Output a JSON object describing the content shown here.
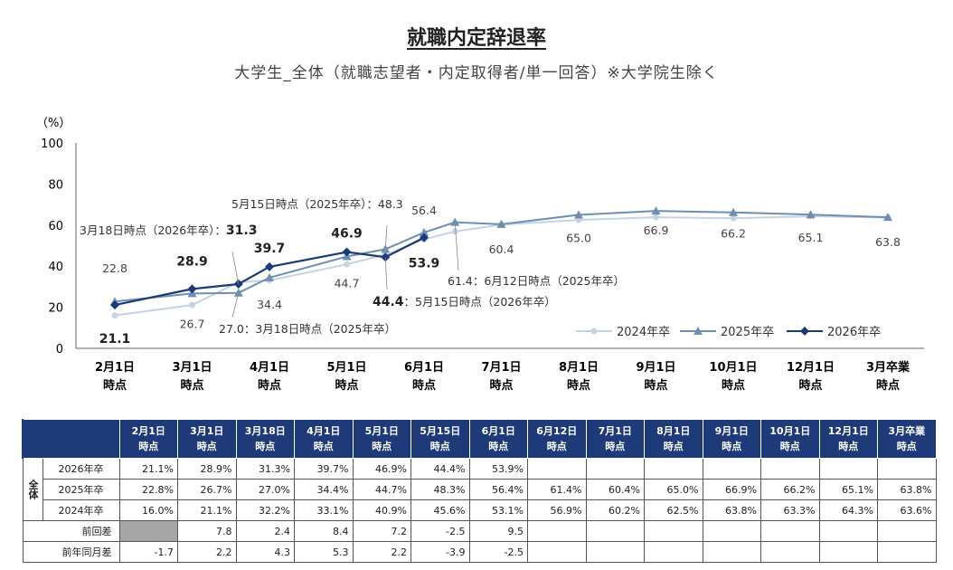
{
  "title": "就職内定辞退率",
  "subtitle": "大学生_全体（就職志望者・内定取得者/単一回答）※大学院生除く",
  "chart_data": {
    "type": "line",
    "ylabel": "（%）",
    "ylim": [
      0,
      100
    ],
    "yticks": [
      0,
      20,
      40,
      60,
      80,
      100
    ],
    "xlabels": [
      "2月1日\n時点",
      "3月1日\n時点",
      "4月1日\n時点",
      "5月1日\n時点",
      "6月1日\n時点",
      "7月1日\n時点",
      "8月1日\n時点",
      "9月1日\n時点",
      "10月1日\n時点",
      "12月1日\n時点",
      "3月卒業\n時点"
    ],
    "legend_position": "bottom-right",
    "series": [
      {
        "name": "2024年卒",
        "color": "#c5d3e3",
        "marker": "circle",
        "points": [
          {
            "x": 0,
            "y": 16.0
          },
          {
            "x": 1,
            "y": 21.1
          },
          {
            "x": 1.6,
            "y": 32.2
          },
          {
            "x": 2,
            "y": 33.1
          },
          {
            "x": 3,
            "y": 40.9
          },
          {
            "x": 3.5,
            "y": 45.6
          },
          {
            "x": 4,
            "y": 53.1
          },
          {
            "x": 4.4,
            "y": 56.9
          },
          {
            "x": 5,
            "y": 60.2
          },
          {
            "x": 6,
            "y": 62.5
          },
          {
            "x": 7,
            "y": 63.8
          },
          {
            "x": 8,
            "y": 63.3
          },
          {
            "x": 9,
            "y": 64.3
          },
          {
            "x": 10,
            "y": 63.6
          }
        ]
      },
      {
        "name": "2025年卒",
        "color": "#6f8fb2",
        "marker": "triangle",
        "points": [
          {
            "x": 0,
            "y": 22.8
          },
          {
            "x": 1,
            "y": 26.7
          },
          {
            "x": 1.6,
            "y": 27.0
          },
          {
            "x": 2,
            "y": 34.4
          },
          {
            "x": 3,
            "y": 44.7
          },
          {
            "x": 3.5,
            "y": 48.3
          },
          {
            "x": 4,
            "y": 56.4
          },
          {
            "x": 4.4,
            "y": 61.4
          },
          {
            "x": 5,
            "y": 60.4
          },
          {
            "x": 6,
            "y": 65.0
          },
          {
            "x": 7,
            "y": 66.9
          },
          {
            "x": 8,
            "y": 66.2
          },
          {
            "x": 9,
            "y": 65.1
          },
          {
            "x": 10,
            "y": 63.8
          }
        ]
      },
      {
        "name": "2026年卒",
        "color": "#1b3a78",
        "marker": "diamond",
        "points": [
          {
            "x": 0,
            "y": 21.1
          },
          {
            "x": 1,
            "y": 28.9
          },
          {
            "x": 1.6,
            "y": 31.3
          },
          {
            "x": 2,
            "y": 39.7
          },
          {
            "x": 3,
            "y": 46.9
          },
          {
            "x": 3.5,
            "y": 44.4
          },
          {
            "x": 4,
            "y": 53.9
          }
        ]
      }
    ],
    "annotations": [
      {
        "text": "22.8",
        "x": 0,
        "y": 22.8,
        "dy": -32,
        "anchor": "middle",
        "color": "#444",
        "bold": false
      },
      {
        "text": "21.1",
        "x": 0,
        "y": 21.1,
        "dy": 42,
        "anchor": "middle",
        "color": "#222",
        "bold": true
      },
      {
        "text": "28.9",
        "x": 1,
        "y": 28.9,
        "dy": -26,
        "anchor": "middle",
        "color": "#222",
        "bold": true
      },
      {
        "text": "26.7",
        "x": 1,
        "y": 26.7,
        "dy": 38,
        "anchor": "middle",
        "color": "#444",
        "bold": false
      },
      {
        "text": "39.7",
        "x": 2,
        "y": 39.7,
        "dy": -16,
        "anchor": "middle",
        "color": "#222",
        "bold": true
      },
      {
        "text": "34.4",
        "x": 2,
        "y": 34.4,
        "dy": 34,
        "anchor": "middle",
        "color": "#444",
        "bold": false
      },
      {
        "text": "46.9",
        "x": 3,
        "y": 46.9,
        "dy": -16,
        "anchor": "middle",
        "color": "#222",
        "bold": true
      },
      {
        "text": "44.7",
        "x": 3,
        "y": 44.7,
        "dy": 34,
        "anchor": "middle",
        "color": "#444",
        "bold": false
      },
      {
        "text": "56.4",
        "x": 4,
        "y": 56.4,
        "dy": -20,
        "anchor": "middle",
        "color": "#444",
        "bold": false
      },
      {
        "text": "53.9",
        "x": 4,
        "y": 53.9,
        "dy": 33,
        "anchor": "middle",
        "color": "#222",
        "bold": true
      },
      {
        "text": "60.4",
        "x": 5,
        "y": 60.4,
        "dy": 32,
        "anchor": "middle",
        "color": "#444",
        "bold": false
      },
      {
        "text": "65.0",
        "x": 6,
        "y": 65.0,
        "dy": 30,
        "anchor": "middle",
        "color": "#444",
        "bold": false
      },
      {
        "text": "66.9",
        "x": 7,
        "y": 66.9,
        "dy": 26,
        "anchor": "middle",
        "color": "#444",
        "bold": false
      },
      {
        "text": "66.2",
        "x": 8,
        "y": 66.2,
        "dy": 28,
        "anchor": "middle",
        "color": "#444",
        "bold": false
      },
      {
        "text": "65.1",
        "x": 9,
        "y": 65.1,
        "dy": 30,
        "anchor": "middle",
        "color": "#444",
        "bold": false
      },
      {
        "text": "63.8",
        "x": 10,
        "y": 63.8,
        "dy": 32,
        "anchor": "middle",
        "color": "#444",
        "bold": false
      }
    ],
    "callouts": [
      {
        "prefix": "3月18日時点（2026年卒）：",
        "value": "31.3",
        "bold": true,
        "x": 1.6,
        "y": 31.3,
        "tx": 88,
        "ty": 139,
        "lx": 257,
        "ly": 158
      },
      {
        "prefix": "5月15日時点（2025年卒）：",
        "value": "48.3",
        "bold": false,
        "x": 3.5,
        "y": 48.3,
        "tx": 256,
        "ty": 110,
        "lx": 428,
        "ly": 129
      },
      {
        "prefix": "27.0：3月18日時点（2025年卒）",
        "value": "",
        "bold": false,
        "x": 1.6,
        "y": 27.0,
        "tx": 242,
        "ty": 248,
        "lx": 257,
        "ly": 231
      },
      {
        "prefix": "61.4：6月12日時点（2025年卒）",
        "value": "",
        "bold": false,
        "x": 4.4,
        "y": 61.4,
        "tx": 495,
        "ty": 195,
        "lx": 507,
        "ly": 179
      },
      {
        "prefix": "：5月15日時点（2026年卒）",
        "value": "44.4",
        "bold": true,
        "x": 3.5,
        "y": 44.4,
        "tx": 412,
        "ty": 218,
        "lx": 428,
        "ly": 200
      }
    ]
  },
  "table": {
    "columns": [
      "2月1日\n時点",
      "3月1日\n時点",
      "3月18日\n時点",
      "4月1日\n時点",
      "5月1日\n時点",
      "5月15日\n時点",
      "6月1日\n時点",
      "6月12日\n時点",
      "7月1日\n時点",
      "8月1日\n時点",
      "9月1日\n時点",
      "10月1日\n時点",
      "12月1日\n時点",
      "3月卒業\n時点"
    ],
    "group_label": "全体",
    "rows": [
      {
        "label": "2026年卒",
        "values": [
          "21.1%",
          "28.9%",
          "31.3%",
          "39.7%",
          "46.9%",
          "44.4%",
          "53.9%",
          "",
          "",
          "",
          "",
          "",
          "",
          ""
        ]
      },
      {
        "label": "2025年卒",
        "values": [
          "22.8%",
          "26.7%",
          "27.0%",
          "34.4%",
          "44.7%",
          "48.3%",
          "56.4%",
          "61.4%",
          "60.4%",
          "65.0%",
          "66.9%",
          "66.2%",
          "65.1%",
          "63.8%"
        ]
      },
      {
        "label": "2024年卒",
        "values": [
          "16.0%",
          "21.1%",
          "32.2%",
          "33.1%",
          "40.9%",
          "45.6%",
          "53.1%",
          "56.9%",
          "60.2%",
          "62.5%",
          "63.8%",
          "63.3%",
          "64.3%",
          "63.6%"
        ]
      }
    ],
    "diff_rows": [
      {
        "label": "前回差",
        "values": [
          "",
          "7.8",
          "2.4",
          "8.4",
          "7.2",
          "-2.5",
          "9.5",
          "",
          "",
          "",
          "",
          "",
          "",
          ""
        ]
      },
      {
        "label": "前年同月差",
        "values": [
          "-1.7",
          "2.2",
          "4.3",
          "5.3",
          "2.2",
          "-3.9",
          "-2.5",
          "",
          "",
          "",
          "",
          "",
          "",
          ""
        ]
      }
    ]
  }
}
